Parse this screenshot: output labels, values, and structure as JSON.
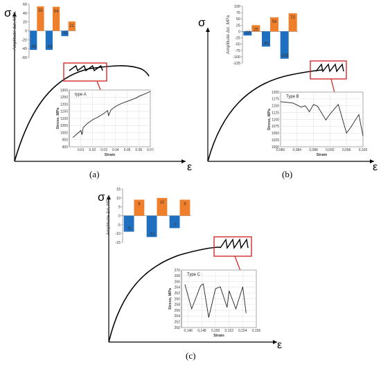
{
  "panels": [
    {
      "caption": "(a)",
      "sigma": "σ",
      "epsilon": "ε",
      "amplitude_chart": {
        "type": "bar",
        "ylabel": "Amplitude Δσ, MPa",
        "ylim": [
          -60,
          60
        ],
        "yticks": [
          "60",
          "40",
          "20",
          "0",
          "-20",
          "-40",
          "-60"
        ],
        "series": [
          {
            "values": [
              55,
              54,
              21
            ],
            "labels": [
              "55",
              "54",
              "21"
            ],
            "color": "#f07f2c"
          },
          {
            "values": [
              -43,
              -43,
              -12
            ],
            "labels": [
              "-43",
              "-43",
              "-12"
            ],
            "color": "#1f6fc1"
          }
        ]
      },
      "inset": {
        "type": "line",
        "label": "type A",
        "ylabel": "Stress, MPa",
        "xlabel": "Strain",
        "ylim": [
          900,
          1300
        ],
        "xlim": [
          0,
          0.07
        ],
        "yticks": [
          "1300",
          "1250",
          "1200",
          "1150",
          "1100",
          "1050",
          "1000",
          "950",
          "900"
        ],
        "xticks": [
          "0.01",
          "0.02",
          "0.03",
          "0.04",
          "0.05",
          "0.06",
          "0.07"
        ],
        "x": [
          0.003,
          0.008,
          0.01,
          0.011,
          0.012,
          0.015,
          0.02,
          0.025,
          0.03,
          0.033,
          0.034,
          0.036,
          0.04,
          0.045,
          0.05,
          0.055,
          0.058,
          0.06,
          0.063,
          0.066,
          0.07
        ],
        "y": [
          965,
          1000,
          1015,
          985,
          1035,
          1060,
          1090,
          1110,
          1135,
          1155,
          1120,
          1160,
          1185,
          1205,
          1220,
          1235,
          1245,
          1255,
          1265,
          1275,
          1290
        ]
      }
    },
    {
      "caption": "(b)",
      "sigma": "σ",
      "epsilon": "ε",
      "amplitude_chart": {
        "type": "bar",
        "ylabel": "Amplitude Δσ, MPa",
        "ylim": [
          -125,
          100
        ],
        "yticks": [
          "100",
          "75",
          "50",
          "25",
          "0",
          "-25",
          "-50",
          "-75",
          "-100",
          "-125"
        ],
        "series": [
          {
            "values": [
              25,
              56,
              72
            ],
            "labels": [
              "25",
              "56",
              "72"
            ],
            "color": "#f07f2c"
          },
          {
            "values": [
              -16,
              -60,
              -108
            ],
            "labels": [
              "-16",
              "-60",
              "-108"
            ],
            "color": "#1f6fc1"
          }
        ]
      },
      "inset": {
        "type": "line",
        "label": "Type B",
        "ylabel": "Stress, MPa",
        "xlabel": "Strain",
        "ylim": [
          1000,
          1200
        ],
        "xlim": [
          0.08,
          0.1
        ],
        "yticks": [
          "1200",
          "1175",
          "1150",
          "1125",
          "1100",
          "1075",
          "1050",
          "1025",
          "1000"
        ],
        "xticks": [
          "0,080",
          "0,084",
          "0,088",
          "0,092",
          "0,096",
          "0,100"
        ],
        "x": [
          0.08,
          0.083,
          0.085,
          0.086,
          0.087,
          0.088,
          0.089,
          0.091,
          0.092,
          0.094,
          0.096,
          0.097,
          0.099,
          0.1
        ],
        "y": [
          1165,
          1160,
          1145,
          1150,
          1128,
          1155,
          1148,
          1098,
          1120,
          1155,
          1050,
          1070,
          1118,
          1040
        ]
      }
    },
    {
      "caption": "(c)",
      "sigma": "σ",
      "epsilon": "ε",
      "amplitude_chart": {
        "type": "bar",
        "ylabel": "Amplitude Δσ, MPa",
        "ylim": [
          -15,
          15
        ],
        "yticks": [
          "15",
          "10",
          "5",
          "0",
          "-5",
          "-10",
          "-15"
        ],
        "series": [
          {
            "values": [
              9,
              10,
              9
            ],
            "labels": [
              "9",
              "10",
              "9"
            ],
            "color": "#f07f2c"
          },
          {
            "values": [
              -9,
              -12,
              -7
            ],
            "labels": [
              "-9",
              "-12",
              "-7"
            ],
            "color": "#1f6fc1"
          }
        ]
      },
      "inset": {
        "type": "line",
        "label": "Type C",
        "ylabel": "Stress, MPa",
        "xlabel": "Strain",
        "ylim": [
          250,
          270
        ],
        "xlim": [
          0.145,
          0.156
        ],
        "yticks": [
          "270",
          "268",
          "266",
          "264",
          "262",
          "260",
          "258",
          "256",
          "254",
          "252",
          "250"
        ],
        "xticks": [
          "0,146",
          "0,148",
          "0,150",
          "0,152",
          "0,154",
          "0,156"
        ],
        "x": [
          0.1455,
          0.1465,
          0.1478,
          0.1482,
          0.149,
          0.15,
          0.1507,
          0.1517,
          0.152,
          0.153,
          0.154,
          0.1545
        ],
        "y": [
          265,
          256.5,
          264.5,
          265.2,
          253.5,
          263.5,
          264.2,
          257,
          262.8,
          256.5,
          264.2,
          255
        ]
      }
    }
  ]
}
